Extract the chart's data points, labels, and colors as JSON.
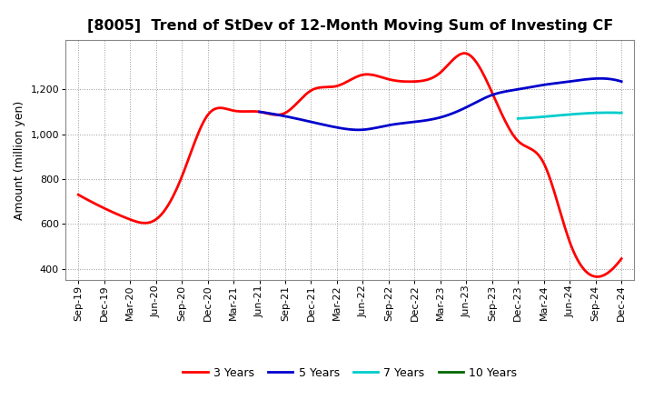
{
  "title": "[8005]  Trend of StDev of 12-Month Moving Sum of Investing CF",
  "ylabel": "Amount (million yen)",
  "x_labels": [
    "Sep-19",
    "Dec-19",
    "Mar-20",
    "Jun-20",
    "Sep-20",
    "Dec-20",
    "Mar-21",
    "Jun-21",
    "Sep-21",
    "Dec-21",
    "Mar-22",
    "Jun-22",
    "Sep-22",
    "Dec-22",
    "Mar-23",
    "Jun-23",
    "Sep-23",
    "Dec-23",
    "Mar-24",
    "Jun-24",
    "Sep-24",
    "Dec-24"
  ],
  "ylim": [
    350,
    1420
  ],
  "yticks": [
    400,
    600,
    800,
    1000,
    1200
  ],
  "ytick_labels": [
    "400",
    "600",
    "800",
    "1,000",
    "1,200"
  ],
  "series": {
    "3 Years": {
      "color": "#ff0000",
      "linewidth": 2.0,
      "data_x": [
        0,
        1,
        2,
        3,
        4,
        5,
        6,
        7,
        8,
        9,
        10,
        11,
        12,
        13,
        14,
        15,
        16,
        17,
        18,
        19,
        20,
        21
      ],
      "data_y": [
        730,
        670,
        620,
        620,
        810,
        1085,
        1105,
        1100,
        1095,
        1195,
        1215,
        1265,
        1245,
        1235,
        1275,
        1360,
        1185,
        970,
        870,
        520,
        365,
        445
      ]
    },
    "5 Years": {
      "color": "#0000cc",
      "linewidth": 2.0,
      "data_x": [
        7,
        8,
        9,
        10,
        11,
        12,
        13,
        14,
        15,
        16,
        17,
        18,
        19,
        20,
        21
      ],
      "data_y": [
        1100,
        1080,
        1055,
        1030,
        1020,
        1040,
        1055,
        1075,
        1120,
        1175,
        1200,
        1220,
        1235,
        1248,
        1235
      ]
    },
    "7 Years": {
      "color": "#00cccc",
      "linewidth": 2.0,
      "data_x": [
        17,
        18,
        19,
        20,
        21
      ],
      "data_y": [
        1070,
        1078,
        1088,
        1095,
        1095
      ]
    },
    "10 Years": {
      "color": "#006600",
      "linewidth": 2.0,
      "data_x": [],
      "data_y": []
    }
  },
  "legend_order": [
    "3 Years",
    "5 Years",
    "7 Years",
    "10 Years"
  ],
  "background_color": "#ffffff",
  "grid_color": "#999999",
  "title_fontsize": 11.5,
  "tick_fontsize": 8,
  "ylabel_fontsize": 9
}
